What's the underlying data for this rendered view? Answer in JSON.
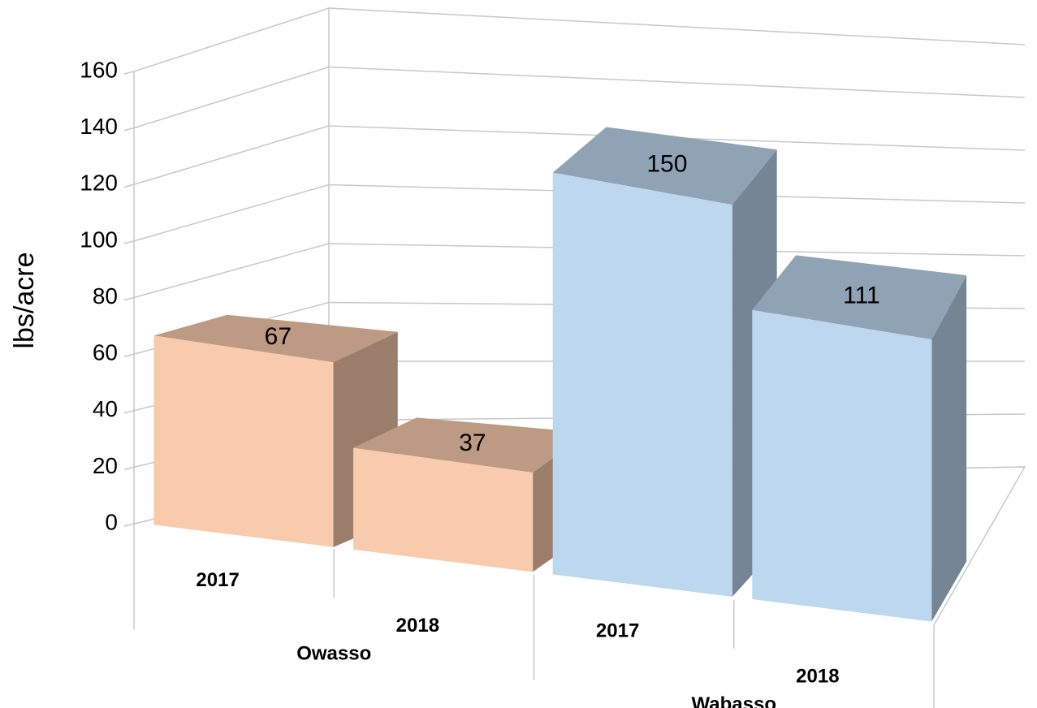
{
  "chart_data": {
    "type": "bar3d",
    "y_label": "lbs/acre",
    "categories": [
      "2017",
      "2018",
      "2017",
      "2018"
    ],
    "group_labels": [
      "Owasso",
      "Wabasso"
    ],
    "values": [
      67,
      37,
      150,
      111
    ],
    "group_colors": [
      "#f8cbad",
      "#bdd7ee"
    ],
    "ylim": [
      0,
      160
    ],
    "yticks": [
      0,
      20,
      40,
      60,
      80,
      100,
      120,
      140,
      160
    ],
    "grid": true
  }
}
